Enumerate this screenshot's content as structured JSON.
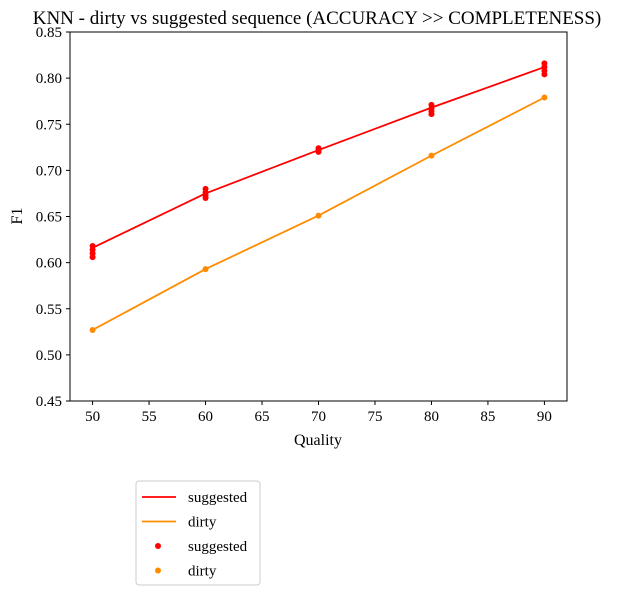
{
  "chart_data": {
    "type": "line",
    "title": "KNN - dirty vs suggested sequence (ACCURACY >> COMPLETENESS)",
    "xlabel": "Quality",
    "ylabel": "F1",
    "xlim": [
      48,
      92
    ],
    "ylim": [
      0.45,
      0.85
    ],
    "x_ticks": [
      "50",
      "55",
      "60",
      "65",
      "70",
      "75",
      "80",
      "85",
      "90"
    ],
    "y_ticks": [
      "0.45",
      "0.50",
      "0.55",
      "0.60",
      "0.65",
      "0.70",
      "0.75",
      "0.80",
      "0.85"
    ],
    "grid": false,
    "legend_position": "below plot, left",
    "series": [
      {
        "name": "suggested",
        "kind": "line",
        "color": "#ff0000",
        "x": [
          50,
          60,
          70,
          80,
          90
        ],
        "y": [
          0.616,
          0.675,
          0.722,
          0.768,
          0.812
        ]
      },
      {
        "name": "dirty",
        "kind": "line",
        "color": "#ff8c00",
        "x": [
          50,
          60,
          70,
          80,
          90
        ],
        "y": [
          0.527,
          0.593,
          0.651,
          0.716,
          0.779
        ]
      },
      {
        "name": "suggested",
        "kind": "scatter",
        "color": "#ff0000",
        "x": [
          50,
          50,
          50,
          50,
          60,
          60,
          60,
          60,
          70,
          70,
          70,
          80,
          80,
          80,
          80,
          90,
          90,
          90,
          90
        ],
        "y": [
          0.618,
          0.614,
          0.61,
          0.606,
          0.68,
          0.676,
          0.673,
          0.67,
          0.724,
          0.722,
          0.72,
          0.771,
          0.767,
          0.764,
          0.761,
          0.816,
          0.812,
          0.808,
          0.804
        ]
      },
      {
        "name": "dirty",
        "kind": "scatter",
        "color": "#ff8c00",
        "x": [
          50,
          60,
          70,
          80,
          90
        ],
        "y": [
          0.527,
          0.593,
          0.651,
          0.716,
          0.779
        ]
      }
    ]
  }
}
